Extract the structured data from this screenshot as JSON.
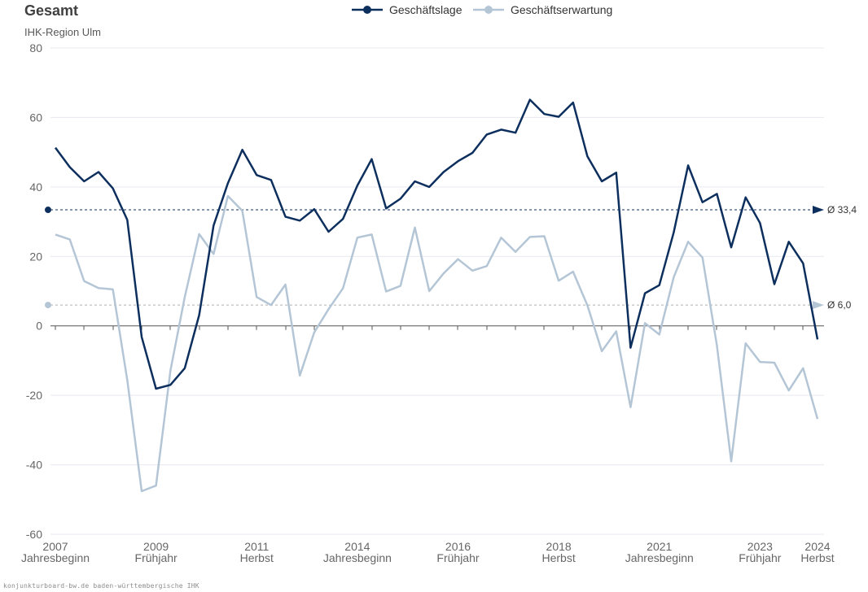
{
  "title": "Gesamt",
  "subtitle": "IHK-Region Ulm",
  "footer": "konjunkturboard-bw.de baden-württembergische IHK",
  "colors": {
    "lage": "#0d2f5e",
    "erwartung": "#b4c6d6",
    "grid": "#e6e9f0",
    "axis": "#555555"
  },
  "chart_data": {
    "type": "line",
    "title": "Gesamt",
    "subtitle": "IHK-Region Ulm",
    "ylim": [
      -60,
      80
    ],
    "yticks": [
      80,
      60,
      40,
      20,
      0,
      -20,
      -40,
      -60
    ],
    "grid": true,
    "legend_position": "top-center",
    "x_ticks": [
      {
        "year": "2007",
        "season": "Jahresbeginn",
        "index": 0
      },
      {
        "year": "2009",
        "season": "Frühjahr",
        "index": 7
      },
      {
        "year": "2011",
        "season": "Herbst",
        "index": 14
      },
      {
        "year": "2014",
        "season": "Jahresbeginn",
        "index": 21
      },
      {
        "year": "2016",
        "season": "Frühjahr",
        "index": 28
      },
      {
        "year": "2018",
        "season": "Herbst",
        "index": 35
      },
      {
        "year": "2021",
        "season": "Jahresbeginn",
        "index": 42
      },
      {
        "year": "2023",
        "season": "Frühjahr",
        "index": 49
      },
      {
        "year": "2024",
        "season": "Herbst",
        "index": 53
      }
    ],
    "series": [
      {
        "name": "Geschäftslage",
        "values": [
          51.3,
          45.7,
          41.6,
          44.3,
          39.6,
          30.5,
          -3.2,
          -18.1,
          -17.0,
          -12.2,
          3.1,
          28.9,
          41.1,
          50.7,
          43.4,
          42.0,
          31.4,
          30.3,
          33.6,
          27.1,
          30.8,
          40.4,
          48.0,
          33.8,
          36.6,
          41.6,
          40.0,
          44.3,
          47.4,
          49.8,
          55.1,
          56.5,
          55.6,
          65.1,
          61.0,
          60.2,
          64.3,
          48.8,
          41.6,
          44.1,
          -6.3,
          9.4,
          11.7,
          26.9,
          46.2,
          35.6,
          38.0,
          22.6,
          37.0,
          29.6,
          12.0,
          24.2,
          18.0,
          -3.9
        ],
        "average": 33.4,
        "average_label": "Ø 33,4"
      },
      {
        "name": "Geschäftserwartung",
        "values": [
          26.3,
          24.9,
          12.9,
          10.9,
          10.5,
          -15.6,
          -47.6,
          -46.0,
          -12.9,
          8.3,
          26.4,
          20.7,
          37.4,
          33.1,
          8.3,
          6.0,
          11.9,
          -14.3,
          -1.9,
          4.8,
          10.8,
          25.4,
          26.3,
          9.9,
          11.5,
          28.3,
          10.0,
          15.1,
          19.2,
          15.9,
          17.2,
          25.4,
          21.3,
          25.6,
          25.8,
          13.0,
          15.6,
          5.9,
          -7.3,
          -1.6,
          -23.4,
          0.8,
          -2.5,
          14.0,
          24.2,
          19.7,
          -5.6,
          -39.0,
          -5.0,
          -10.4,
          -10.6,
          -18.6,
          -12.2,
          -26.8
        ],
        "average": 6.0,
        "average_label": "Ø 6,0"
      }
    ]
  }
}
